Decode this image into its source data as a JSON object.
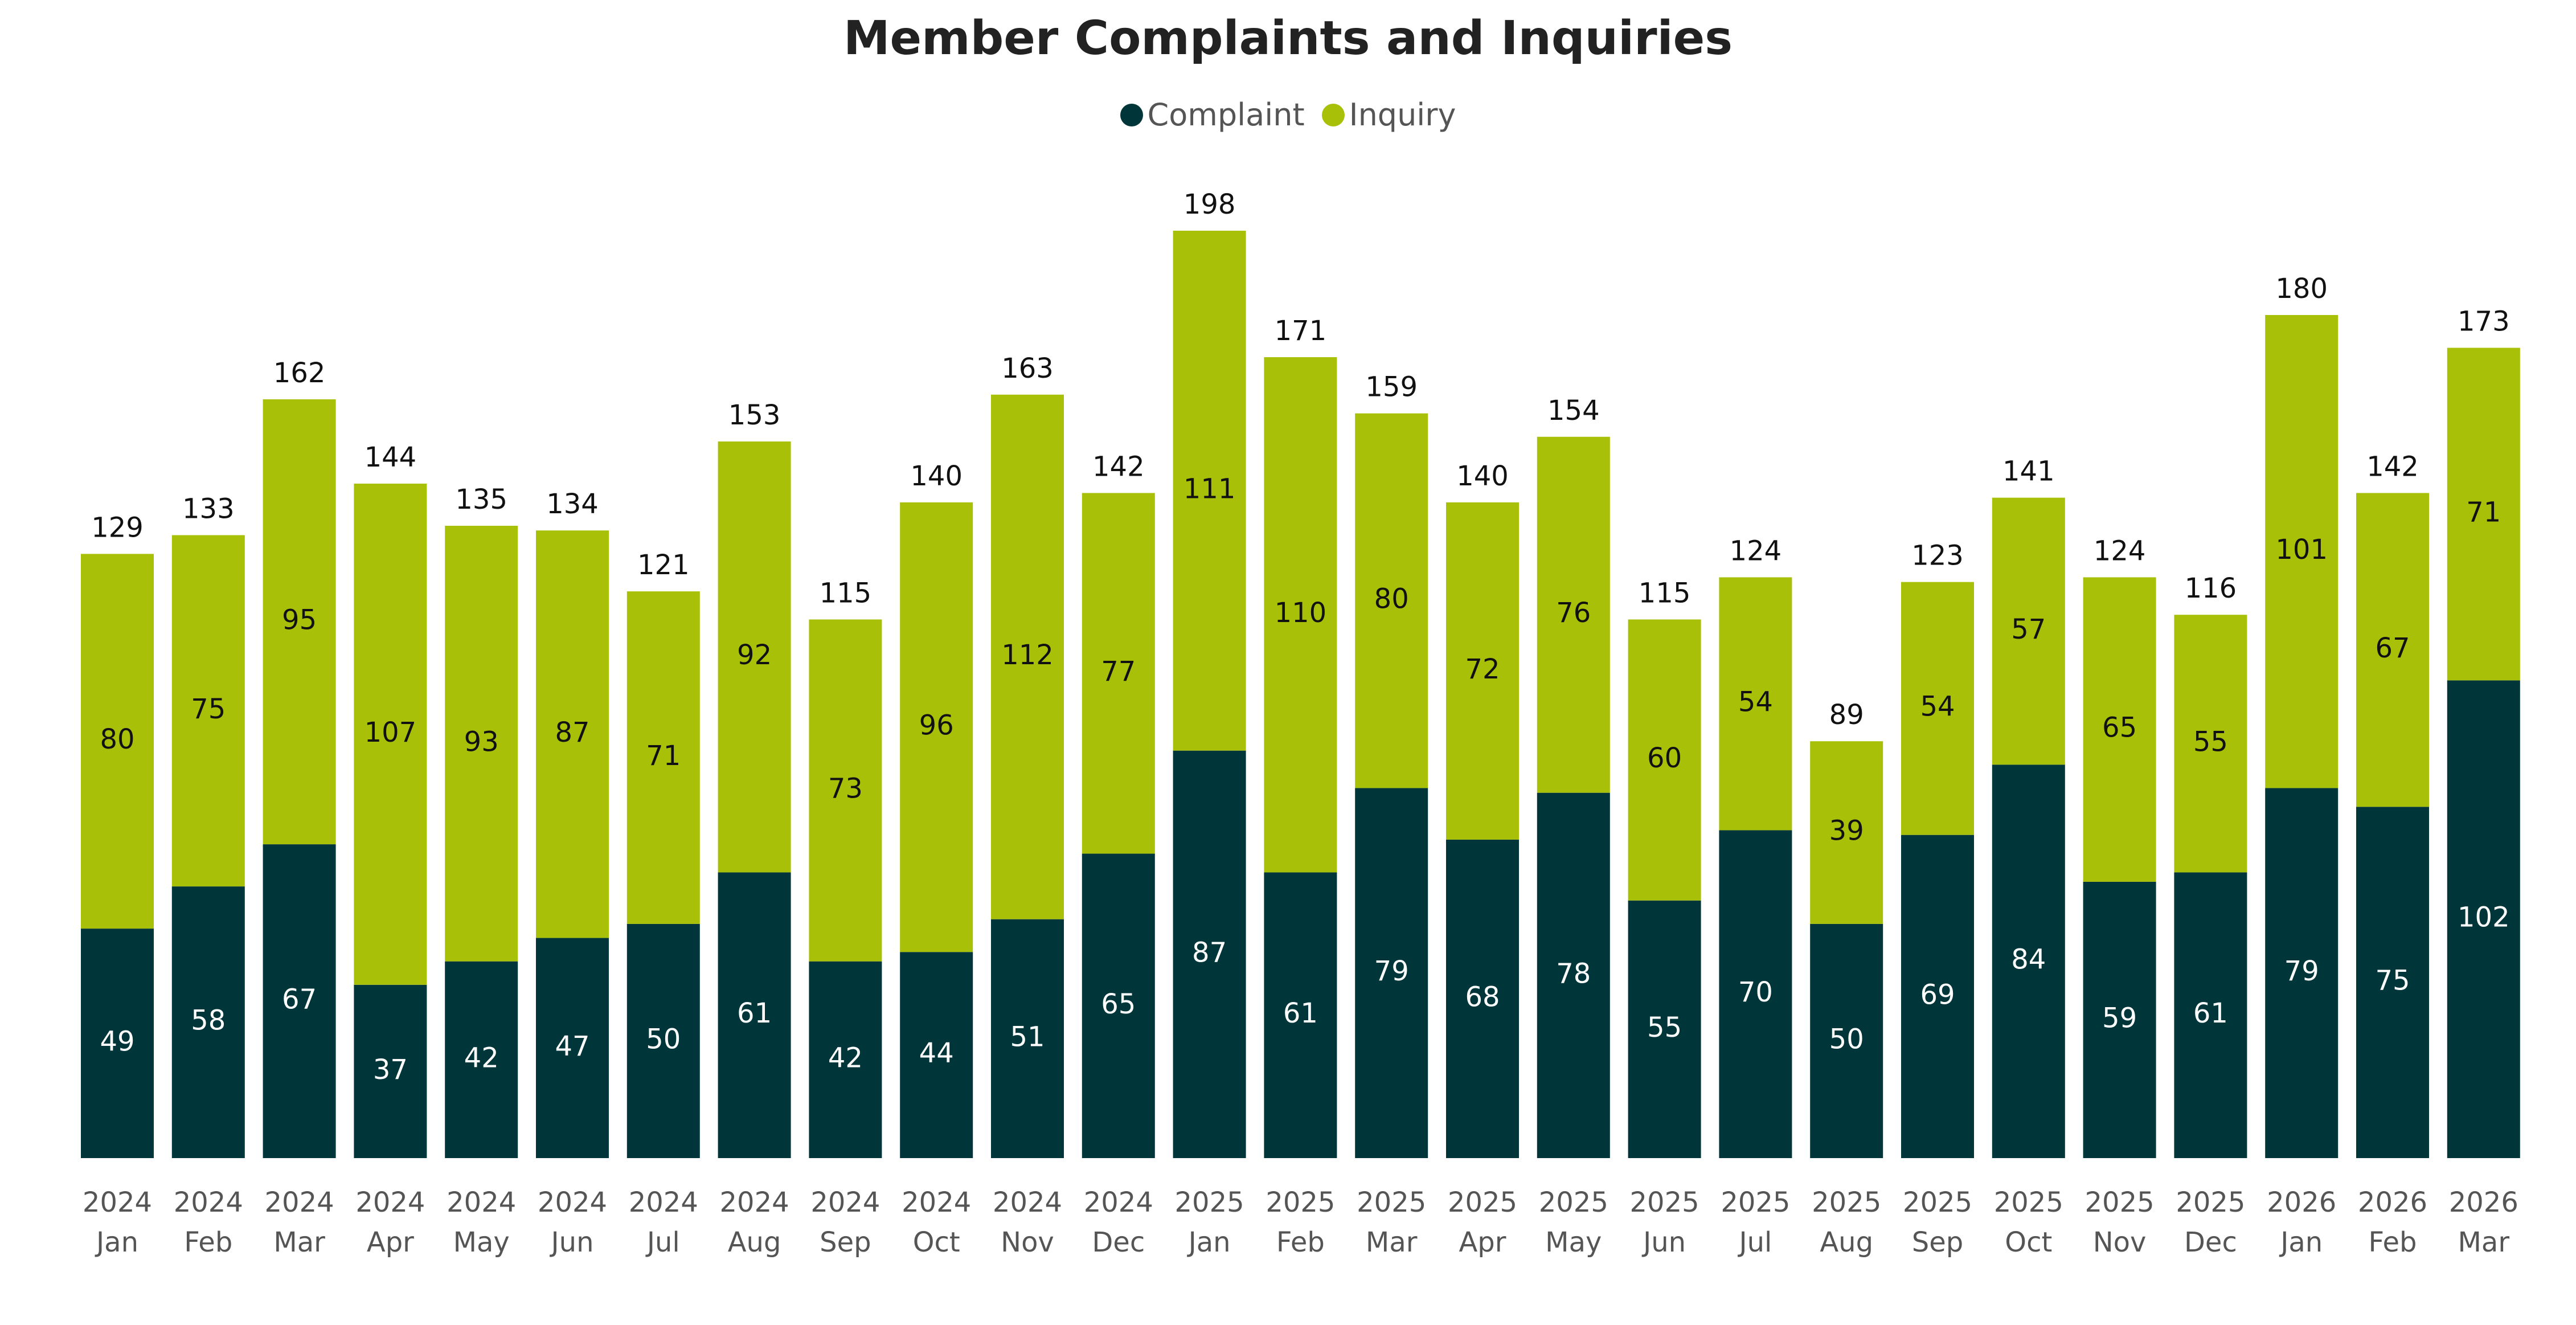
{
  "chart_data": {
    "type": "bar",
    "stacked": true,
    "title": "Member Complaints and Inquiries",
    "categories": [
      {
        "year": "2024",
        "month": "Jan"
      },
      {
        "year": "2024",
        "month": "Feb"
      },
      {
        "year": "2024",
        "month": "Mar"
      },
      {
        "year": "2024",
        "month": "Apr"
      },
      {
        "year": "2024",
        "month": "May"
      },
      {
        "year": "2024",
        "month": "Jun"
      },
      {
        "year": "2024",
        "month": "Jul"
      },
      {
        "year": "2024",
        "month": "Aug"
      },
      {
        "year": "2024",
        "month": "Sep"
      },
      {
        "year": "2024",
        "month": "Oct"
      },
      {
        "year": "2024",
        "month": "Nov"
      },
      {
        "year": "2024",
        "month": "Dec"
      },
      {
        "year": "2025",
        "month": "Jan"
      },
      {
        "year": "2025",
        "month": "Feb"
      },
      {
        "year": "2025",
        "month": "Mar"
      },
      {
        "year": "2025",
        "month": "Apr"
      },
      {
        "year": "2025",
        "month": "May"
      },
      {
        "year": "2025",
        "month": "Jun"
      },
      {
        "year": "2025",
        "month": "Jul"
      },
      {
        "year": "2025",
        "month": "Aug"
      },
      {
        "year": "2025",
        "month": "Sep"
      },
      {
        "year": "2025",
        "month": "Oct"
      },
      {
        "year": "2025",
        "month": "Nov"
      },
      {
        "year": "2025",
        "month": "Dec"
      },
      {
        "year": "2026",
        "month": "Jan"
      },
      {
        "year": "2026",
        "month": "Feb"
      },
      {
        "year": "2026",
        "month": "Mar"
      }
    ],
    "series": [
      {
        "name": "Complaint",
        "color": "#00363a",
        "values": [
          49,
          58,
          67,
          37,
          42,
          47,
          50,
          61,
          42,
          44,
          51,
          65,
          87,
          61,
          79,
          68,
          78,
          55,
          70,
          50,
          69,
          84,
          59,
          61,
          79,
          75,
          102
        ]
      },
      {
        "name": "Inquiry",
        "color": "#a8c108",
        "values": [
          80,
          75,
          95,
          107,
          93,
          87,
          71,
          92,
          73,
          96,
          112,
          77,
          111,
          110,
          80,
          72,
          76,
          60,
          54,
          39,
          54,
          57,
          65,
          55,
          101,
          67,
          71
        ]
      }
    ],
    "totals": [
      129,
      133,
      162,
      144,
      135,
      134,
      121,
      153,
      115,
      140,
      163,
      142,
      198,
      171,
      159,
      140,
      154,
      115,
      124,
      89,
      123,
      141,
      124,
      116,
      180,
      142,
      173
    ],
    "legend_position": "top-center",
    "grid": false,
    "ylim": [
      0,
      198
    ]
  }
}
